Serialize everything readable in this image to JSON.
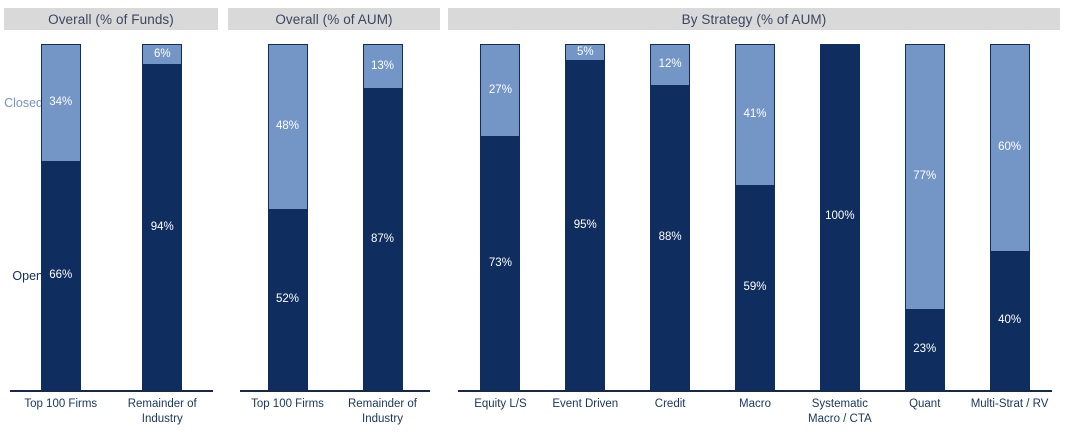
{
  "legend": {
    "closed": "Closed",
    "open": "Open"
  },
  "colors": {
    "closed": "#7496c7",
    "open": "#0f2d5e",
    "header_bg": "#d9d9d9",
    "header_text": "#3a4660",
    "axis_line": "#16294d",
    "category_label": "#17365d",
    "value_label": "#ffffff"
  },
  "chart_data": [
    {
      "type": "bar",
      "stacked": true,
      "title": "Overall (% of Funds)",
      "unit": "%",
      "ylim": [
        0,
        100
      ],
      "grid": false,
      "categories": [
        "Top 100 Firms",
        "Remainder of Industry"
      ],
      "series": [
        {
          "name": "Closed",
          "values": [
            34,
            6
          ]
        },
        {
          "name": "Open",
          "values": [
            66,
            94
          ]
        }
      ]
    },
    {
      "type": "bar",
      "stacked": true,
      "title": "Overall (% of AUM)",
      "unit": "%",
      "ylim": [
        0,
        100
      ],
      "grid": false,
      "categories": [
        "Top 100 Firms",
        "Remainder of Industry"
      ],
      "series": [
        {
          "name": "Closed",
          "values": [
            48,
            13
          ]
        },
        {
          "name": "Open",
          "values": [
            52,
            87
          ]
        }
      ]
    },
    {
      "type": "bar",
      "stacked": true,
      "title": "By Strategy (% of AUM)",
      "unit": "%",
      "ylim": [
        0,
        100
      ],
      "grid": false,
      "categories": [
        "Equity L/S",
        "Event Driven",
        "Credit",
        "Macro",
        "Systematic Macro / CTA",
        "Quant",
        "Multi-Strat / RV"
      ],
      "series": [
        {
          "name": "Closed",
          "values": [
            27,
            5,
            12,
            41,
            0,
            77,
            60
          ]
        },
        {
          "name": "Open",
          "values": [
            73,
            95,
            88,
            59,
            100,
            23,
            40
          ]
        }
      ]
    }
  ]
}
